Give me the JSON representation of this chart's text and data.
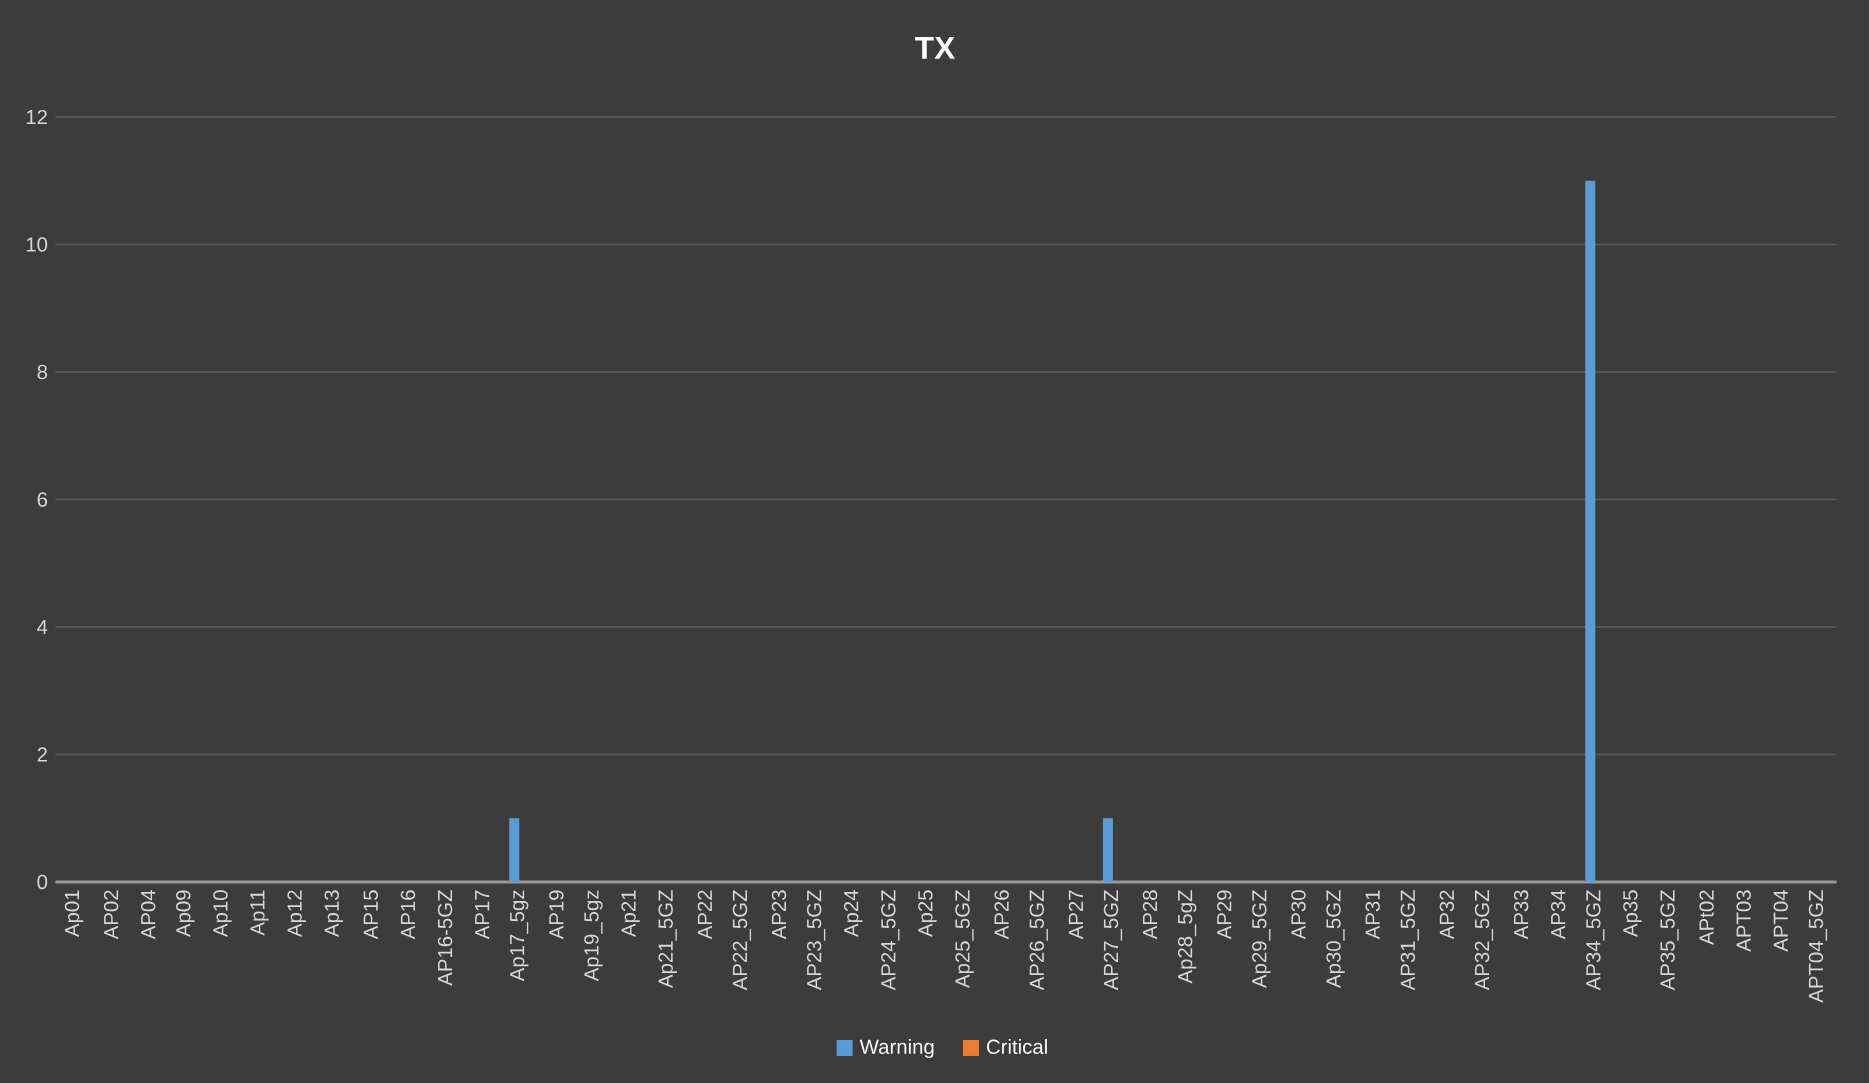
{
  "chart_data": {
    "type": "bar",
    "title": "TX",
    "categories": [
      "Ap01",
      "AP02",
      "AP04",
      "Ap09",
      "Ap10",
      "Ap11",
      "Ap12",
      "Ap13",
      "AP15",
      "AP16",
      "AP16-5GZ",
      "AP17",
      "Ap17_5gz",
      "AP19",
      "Ap19_5gz",
      "Ap21",
      "Ap21_5GZ",
      "AP22",
      "AP22_5GZ",
      "AP23",
      "AP23_5GZ",
      "Ap24",
      "AP24_5GZ",
      "Ap25",
      "Ap25_5GZ",
      "AP26",
      "AP26_5GZ",
      "AP27",
      "AP27_5GZ",
      "AP28",
      "Ap28_5gZ",
      "AP29",
      "Ap29_5GZ",
      "AP30",
      "Ap30_5GZ",
      "AP31",
      "AP31_5GZ",
      "AP32",
      "AP32_5GZ",
      "AP33",
      "AP34",
      "AP34_5GZ",
      "Ap35",
      "AP35_5GZ",
      "APt02",
      "APT03",
      "APT04",
      "APT04_5GZ"
    ],
    "series": [
      {
        "name": "Warning",
        "color": "#5b9bd5",
        "values": [
          0,
          0,
          0,
          0,
          0,
          0,
          0,
          0,
          0,
          0,
          0,
          0,
          1,
          0,
          0,
          0,
          0,
          0,
          0,
          0,
          0,
          0,
          0,
          0,
          0,
          0,
          0,
          0,
          1,
          0,
          0,
          0,
          0,
          0,
          0,
          0,
          0,
          0,
          0,
          0,
          0,
          11,
          0,
          0,
          0,
          0,
          0,
          0
        ]
      },
      {
        "name": "Critical",
        "color": "#ed7d31",
        "values": [
          0,
          0,
          0,
          0,
          0,
          0,
          0,
          0,
          0,
          0,
          0,
          0,
          0,
          0,
          0,
          0,
          0,
          0,
          0,
          0,
          0,
          0,
          0,
          0,
          0,
          0,
          0,
          0,
          0,
          0,
          0,
          0,
          0,
          0,
          0,
          0,
          0,
          0,
          0,
          0,
          0,
          0,
          0,
          0,
          0,
          0,
          0,
          0
        ]
      }
    ],
    "ylim": [
      0,
      12
    ],
    "yticks": [
      0,
      2,
      4,
      6,
      8,
      10,
      12
    ],
    "grid": "y",
    "legend": "bottom"
  }
}
